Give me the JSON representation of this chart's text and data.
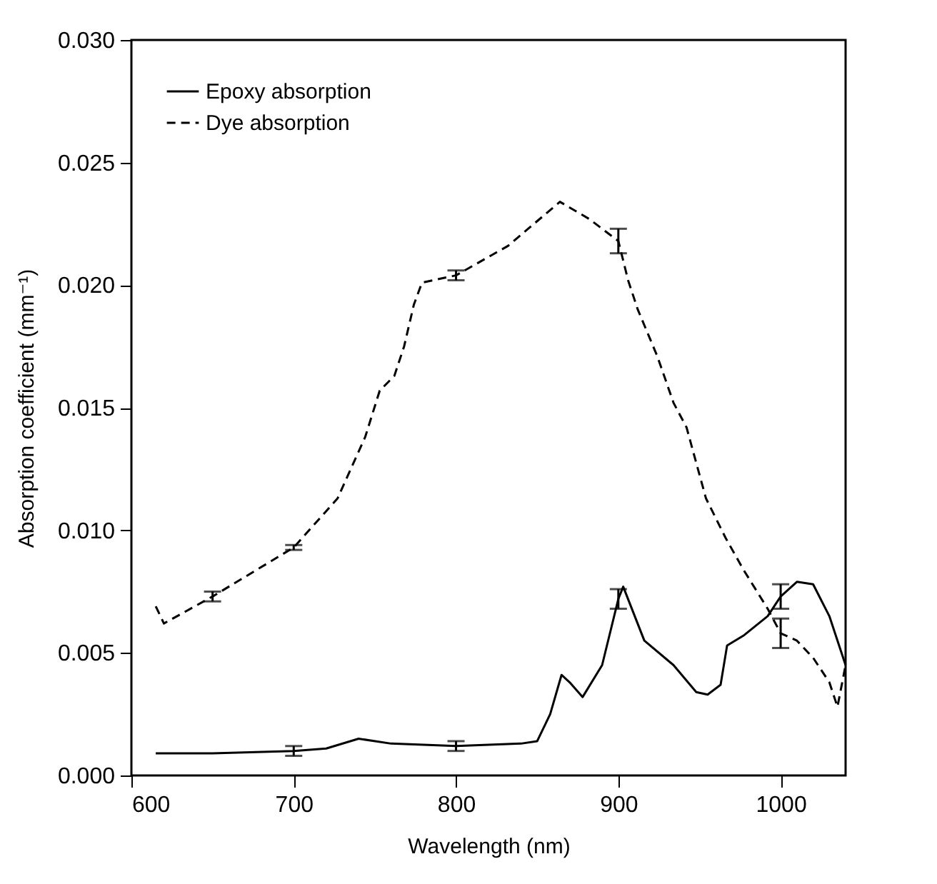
{
  "chart_data": {
    "type": "line",
    "xlabel": "Wavelength (nm)",
    "ylabel": "Absorption coefficient (mm⁻¹)",
    "xlim": [
      600,
      1040
    ],
    "xticks": [
      600,
      700,
      800,
      900,
      1000
    ],
    "ylim": [
      0,
      0.03
    ],
    "yticks": [
      {
        "value": 0,
        "label": "0.000"
      },
      {
        "value": 0.005,
        "label": "0.005"
      },
      {
        "value": 0.01,
        "label": "0.010"
      },
      {
        "value": 0.015,
        "label": "0.015"
      },
      {
        "value": 0.02,
        "label": "0.020"
      },
      {
        "value": 0.025,
        "label": "0.025"
      },
      {
        "value": 0.03,
        "label": "0.030"
      }
    ],
    "grid": false,
    "legend": "top left",
    "marker": "none",
    "series": [
      {
        "name": "Epoxy absorption",
        "color": "#000000",
        "line_style": "solid",
        "x": [
          615,
          650,
          700,
          720,
          740,
          760,
          800,
          840,
          850,
          858,
          865,
          870,
          878,
          890,
          900,
          903,
          916,
          934,
          948,
          955,
          963,
          967,
          977,
          992,
          1000,
          1010,
          1020,
          1030,
          1040
        ],
        "values": [
          0.0009,
          0.0009,
          0.001,
          0.0011,
          0.0015,
          0.0013,
          0.0012,
          0.0013,
          0.0014,
          0.0025,
          0.0041,
          0.0038,
          0.0032,
          0.0045,
          0.0072,
          0.0077,
          0.0055,
          0.0045,
          0.0034,
          0.0033,
          0.0037,
          0.0053,
          0.0057,
          0.0065,
          0.0073,
          0.0079,
          0.0078,
          0.0065,
          0.0045
        ],
        "errors": [
          null,
          null,
          0.0002,
          null,
          null,
          null,
          0.0002,
          null,
          null,
          null,
          null,
          null,
          null,
          null,
          0.0004,
          null,
          null,
          null,
          null,
          null,
          null,
          null,
          null,
          null,
          0.0005,
          null,
          null,
          null,
          null
        ]
      },
      {
        "name": "Dye absorption",
        "color": "#000000",
        "line_style": "dashed",
        "x": [
          615,
          620,
          650,
          700,
          727,
          744,
          753,
          762,
          768,
          774,
          779,
          800,
          832,
          864,
          882,
          900,
          906,
          912,
          924,
          934,
          942,
          954,
          966,
          977,
          992,
          1000,
          1010,
          1020,
          1030,
          1035,
          1040
        ],
        "values": [
          0.0069,
          0.0062,
          0.0073,
          0.0093,
          0.0113,
          0.0138,
          0.0157,
          0.0163,
          0.0175,
          0.0192,
          0.0201,
          0.0204,
          0.0216,
          0.0234,
          0.0227,
          0.0218,
          0.0202,
          0.019,
          0.0171,
          0.0152,
          0.0142,
          0.0113,
          0.0097,
          0.0084,
          0.0068,
          0.0058,
          0.0055,
          0.0048,
          0.0038,
          0.0028,
          0.0045
        ],
        "errors": [
          null,
          null,
          0.0002,
          0.0001,
          null,
          null,
          null,
          null,
          null,
          null,
          null,
          0.0002,
          null,
          null,
          null,
          0.0005,
          null,
          null,
          null,
          null,
          null,
          null,
          null,
          null,
          null,
          0.0006,
          null,
          null,
          null,
          null,
          null
        ]
      }
    ]
  }
}
